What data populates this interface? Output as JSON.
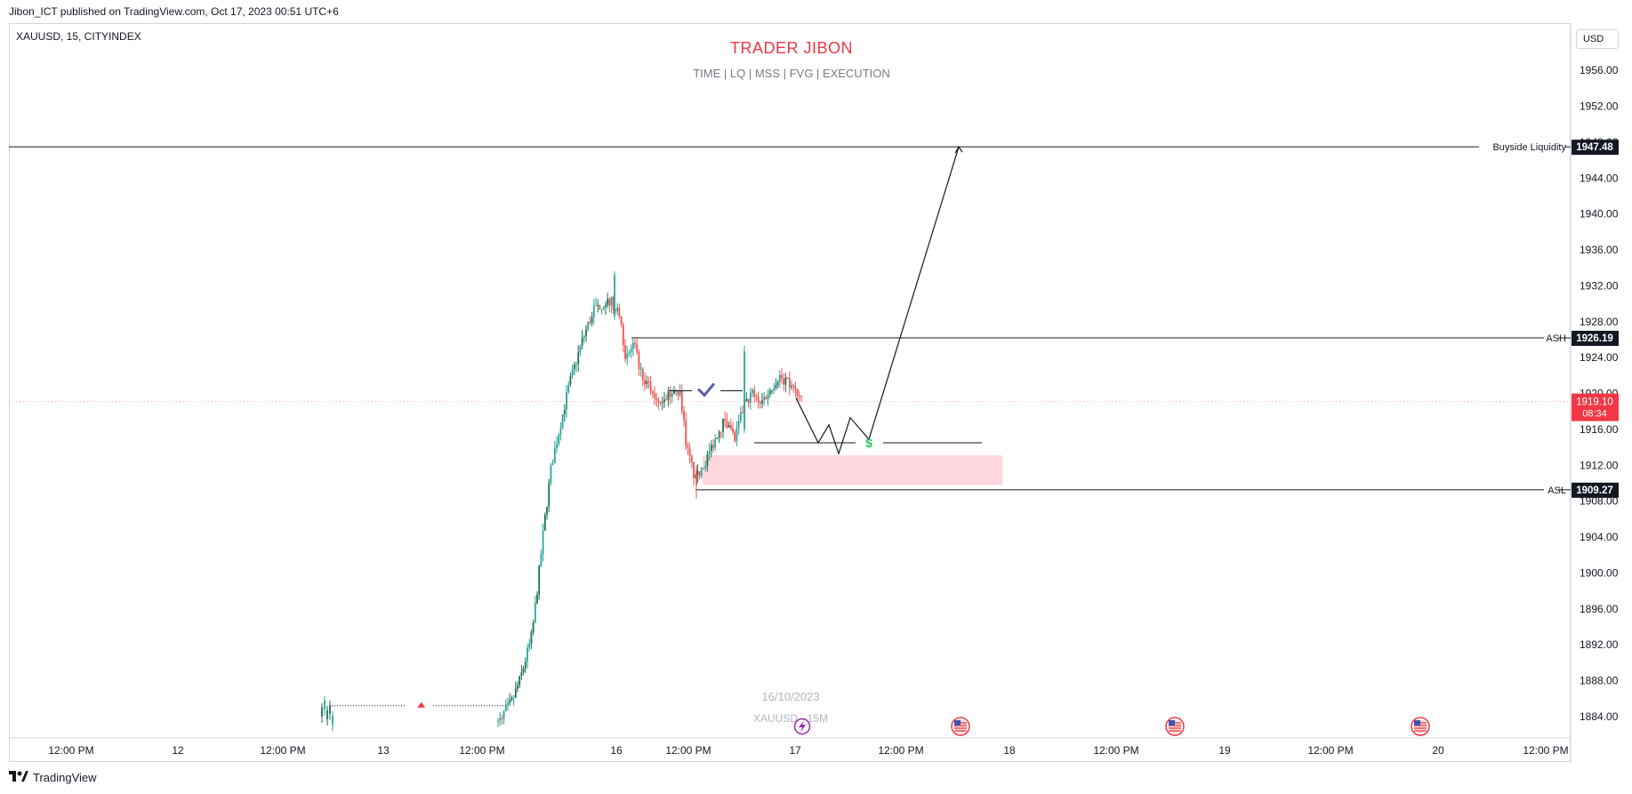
{
  "header": {
    "published": "Jibon_ICT published on TradingView.com, Oct 17, 2023 00:51 UTC+6"
  },
  "chart_data": {
    "type": "candlestick",
    "symbol": "XAUUSD, 15, CITYINDEX",
    "title": "TRADER JIBON",
    "subtitle": "TIME   |   LQ   |   MSS   |  FVG  |  EXECUTION",
    "currency": "USD",
    "watermark": {
      "date": "16/10/2023",
      "label": "XAUUSD · 15M"
    },
    "y_axis": {
      "range": [
        1882.8,
        1957.5
      ],
      "ticks": [
        "1956.00",
        "1952.00",
        "1948.00",
        "1944.00",
        "1940.00",
        "1936.00",
        "1932.00",
        "1928.00",
        "1924.00",
        "1920.00",
        "1916.00",
        "1912.00",
        "1908.00",
        "1904.00",
        "1900.00",
        "1896.00",
        "1892.00",
        "1888.00",
        "1884.00"
      ]
    },
    "x_axis": {
      "ticks": [
        "12:00 PM",
        "12",
        "12:00 PM",
        "13",
        "12:00 PM",
        "16",
        "12:00 PM",
        "17",
        "12:00 PM",
        "18",
        "12:00 PM",
        "19",
        "12:00 PM",
        "20",
        "12:00 PM"
      ]
    },
    "levels": [
      {
        "name": "Buyside Liquidity",
        "price": 1947.48,
        "price_label": "1947.48"
      },
      {
        "name": "ASH",
        "price": 1926.19,
        "price_label": "1926.19"
      },
      {
        "name": "ASL",
        "price": 1909.27,
        "price_label": "1909.27"
      }
    ],
    "current_price": {
      "price": 1919.1,
      "label": "1919.10",
      "countdown": "08:34"
    },
    "fvg_zone": {
      "top": 1913.1,
      "bottom": 1909.8
    },
    "projection": [
      [
        1919.5
      ],
      [
        1914.5
      ],
      [
        1916.5
      ],
      [
        1913.3
      ],
      [
        1917.3
      ],
      [
        1914.9
      ],
      [
        1947.48
      ]
    ],
    "colors": {
      "up": "#26a69a",
      "up_dark": "#1b6e56",
      "down": "#ef5350",
      "title": "#f23645",
      "fvg": "#fdd7dd",
      "price_tag": "#f23645"
    },
    "icons": {
      "check": "check-icon",
      "dollar": "dollar-icon",
      "lightning": "lightning-event-icon",
      "flag": "us-flag-icon"
    }
  },
  "footer": {
    "brand": "TradingView",
    "logo": "tradingview-logo-icon"
  }
}
